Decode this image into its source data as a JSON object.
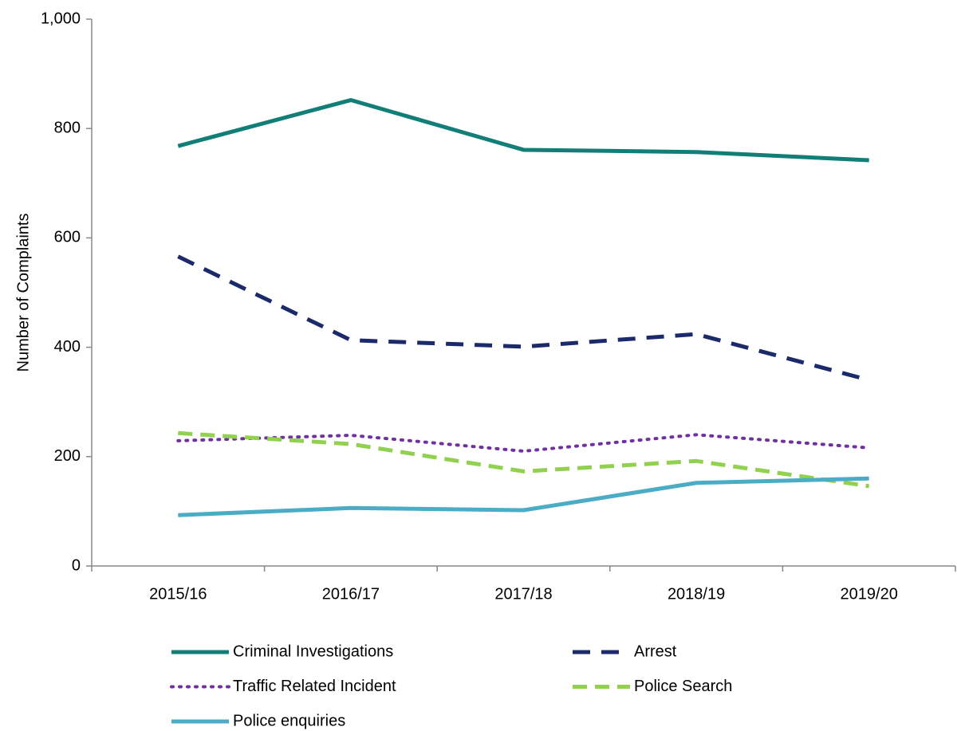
{
  "chart_data": {
    "type": "line",
    "y_label": "Number  of Complaints",
    "categories": [
      "2015/16",
      "2016/17",
      "2017/18",
      "2018/19",
      "2019/20"
    ],
    "series": [
      {
        "name": "Criminal Investigations",
        "color": "#127e78",
        "style": "solid",
        "values": [
          768,
          852,
          761,
          757,
          742
        ]
      },
      {
        "name": "Arrest",
        "color": "#1b2a6b",
        "style": "dashed",
        "values": [
          566,
          413,
          401,
          424,
          340
        ]
      },
      {
        "name": "Traffic Related Incident",
        "color": "#7030a0",
        "style": "dotted",
        "values": [
          229,
          239,
          210,
          240,
          216
        ]
      },
      {
        "name": "Police Search",
        "color": "#92d050",
        "style": "dashed",
        "values": [
          243,
          223,
          173,
          192,
          146
        ]
      },
      {
        "name": "Police enquiries",
        "color": "#4bacc6",
        "style": "solid",
        "values": [
          93,
          106,
          102,
          152,
          160
        ]
      }
    ],
    "ylim": [
      0,
      1000
    ],
    "yticks": [
      0,
      200,
      400,
      600,
      800,
      {
        "value": 1000,
        "label": "1,000"
      }
    ],
    "grid": false
  }
}
